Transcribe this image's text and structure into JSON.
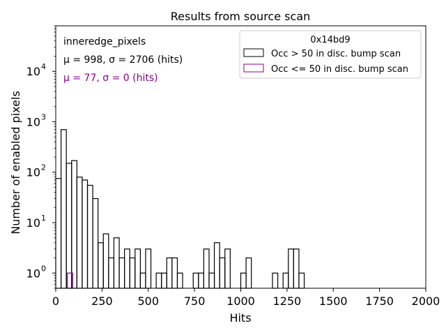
{
  "chart_data": {
    "type": "histogram",
    "title": "Results from source scan",
    "xlabel": "Hits",
    "ylabel": "Number of enabled pixels",
    "xlim": [
      0,
      2000
    ],
    "ylim": [
      0.5,
      80000
    ],
    "yscale": "log",
    "x_ticks": [
      0,
      250,
      500,
      750,
      1000,
      1250,
      1500,
      1750,
      2000
    ],
    "y_ticks": [
      {
        "value": 1,
        "label": "10",
        "exp": "0"
      },
      {
        "value": 10,
        "label": "10",
        "exp": "1"
      },
      {
        "value": 100,
        "label": "10",
        "exp": "2"
      },
      {
        "value": 1000,
        "label": "10",
        "exp": "3"
      },
      {
        "value": 10000,
        "label": "10",
        "exp": "4"
      }
    ],
    "bin_width": 28.6,
    "annotations": {
      "line1": "inneredge_pixels",
      "line2": "μ = 998, σ = 2706 (hits)",
      "line3": "μ = 77, σ = 0 (hits)"
    },
    "legend": {
      "title": "0x14bd9",
      "location": "upper right"
    },
    "series": [
      {
        "name": "Occ > 50 in disc. bump scan",
        "color": "#000000",
        "bins": [
          {
            "x": 0,
            "y": 75
          },
          {
            "x": 28.6,
            "y": 700
          },
          {
            "x": 57.1,
            "y": 150
          },
          {
            "x": 85.7,
            "y": 170
          },
          {
            "x": 114.3,
            "y": 80
          },
          {
            "x": 142.9,
            "y": 70
          },
          {
            "x": 171.4,
            "y": 55
          },
          {
            "x": 200,
            "y": 30
          },
          {
            "x": 228.6,
            "y": 4
          },
          {
            "x": 257.1,
            "y": 6
          },
          {
            "x": 285.7,
            "y": 2
          },
          {
            "x": 314.3,
            "y": 5
          },
          {
            "x": 342.9,
            "y": 2
          },
          {
            "x": 371.4,
            "y": 3
          },
          {
            "x": 400,
            "y": 2
          },
          {
            "x": 428.6,
            "y": 3
          },
          {
            "x": 457.1,
            "y": 1
          },
          {
            "x": 485.7,
            "y": 3
          },
          {
            "x": 514.3,
            "y": 0
          },
          {
            "x": 542.9,
            "y": 1
          },
          {
            "x": 571.4,
            "y": 1
          },
          {
            "x": 600,
            "y": 2
          },
          {
            "x": 628.6,
            "y": 2
          },
          {
            "x": 657.1,
            "y": 1
          },
          {
            "x": 685.7,
            "y": 0
          },
          {
            "x": 714.3,
            "y": 0
          },
          {
            "x": 742.9,
            "y": 1
          },
          {
            "x": 771.4,
            "y": 1
          },
          {
            "x": 800,
            "y": 3
          },
          {
            "x": 828.6,
            "y": 1
          },
          {
            "x": 857.1,
            "y": 4
          },
          {
            "x": 885.7,
            "y": 2
          },
          {
            "x": 914.3,
            "y": 3
          },
          {
            "x": 942.9,
            "y": 0
          },
          {
            "x": 971.4,
            "y": 0
          },
          {
            "x": 1000,
            "y": 1
          },
          {
            "x": 1028.6,
            "y": 2
          },
          {
            "x": 1057.1,
            "y": 0
          },
          {
            "x": 1085.7,
            "y": 0
          },
          {
            "x": 1114.3,
            "y": 0
          },
          {
            "x": 1142.9,
            "y": 0
          },
          {
            "x": 1171.4,
            "y": 1
          },
          {
            "x": 1200,
            "y": 0
          },
          {
            "x": 1228.6,
            "y": 1
          },
          {
            "x": 1257.1,
            "y": 3
          },
          {
            "x": 1285.7,
            "y": 3
          },
          {
            "x": 1314.3,
            "y": 1
          }
        ]
      },
      {
        "name": "Occ <= 50 in disc. bump scan",
        "color": "#8b008b",
        "bins": [
          {
            "x": 62.9,
            "y": 1
          }
        ]
      }
    ]
  }
}
